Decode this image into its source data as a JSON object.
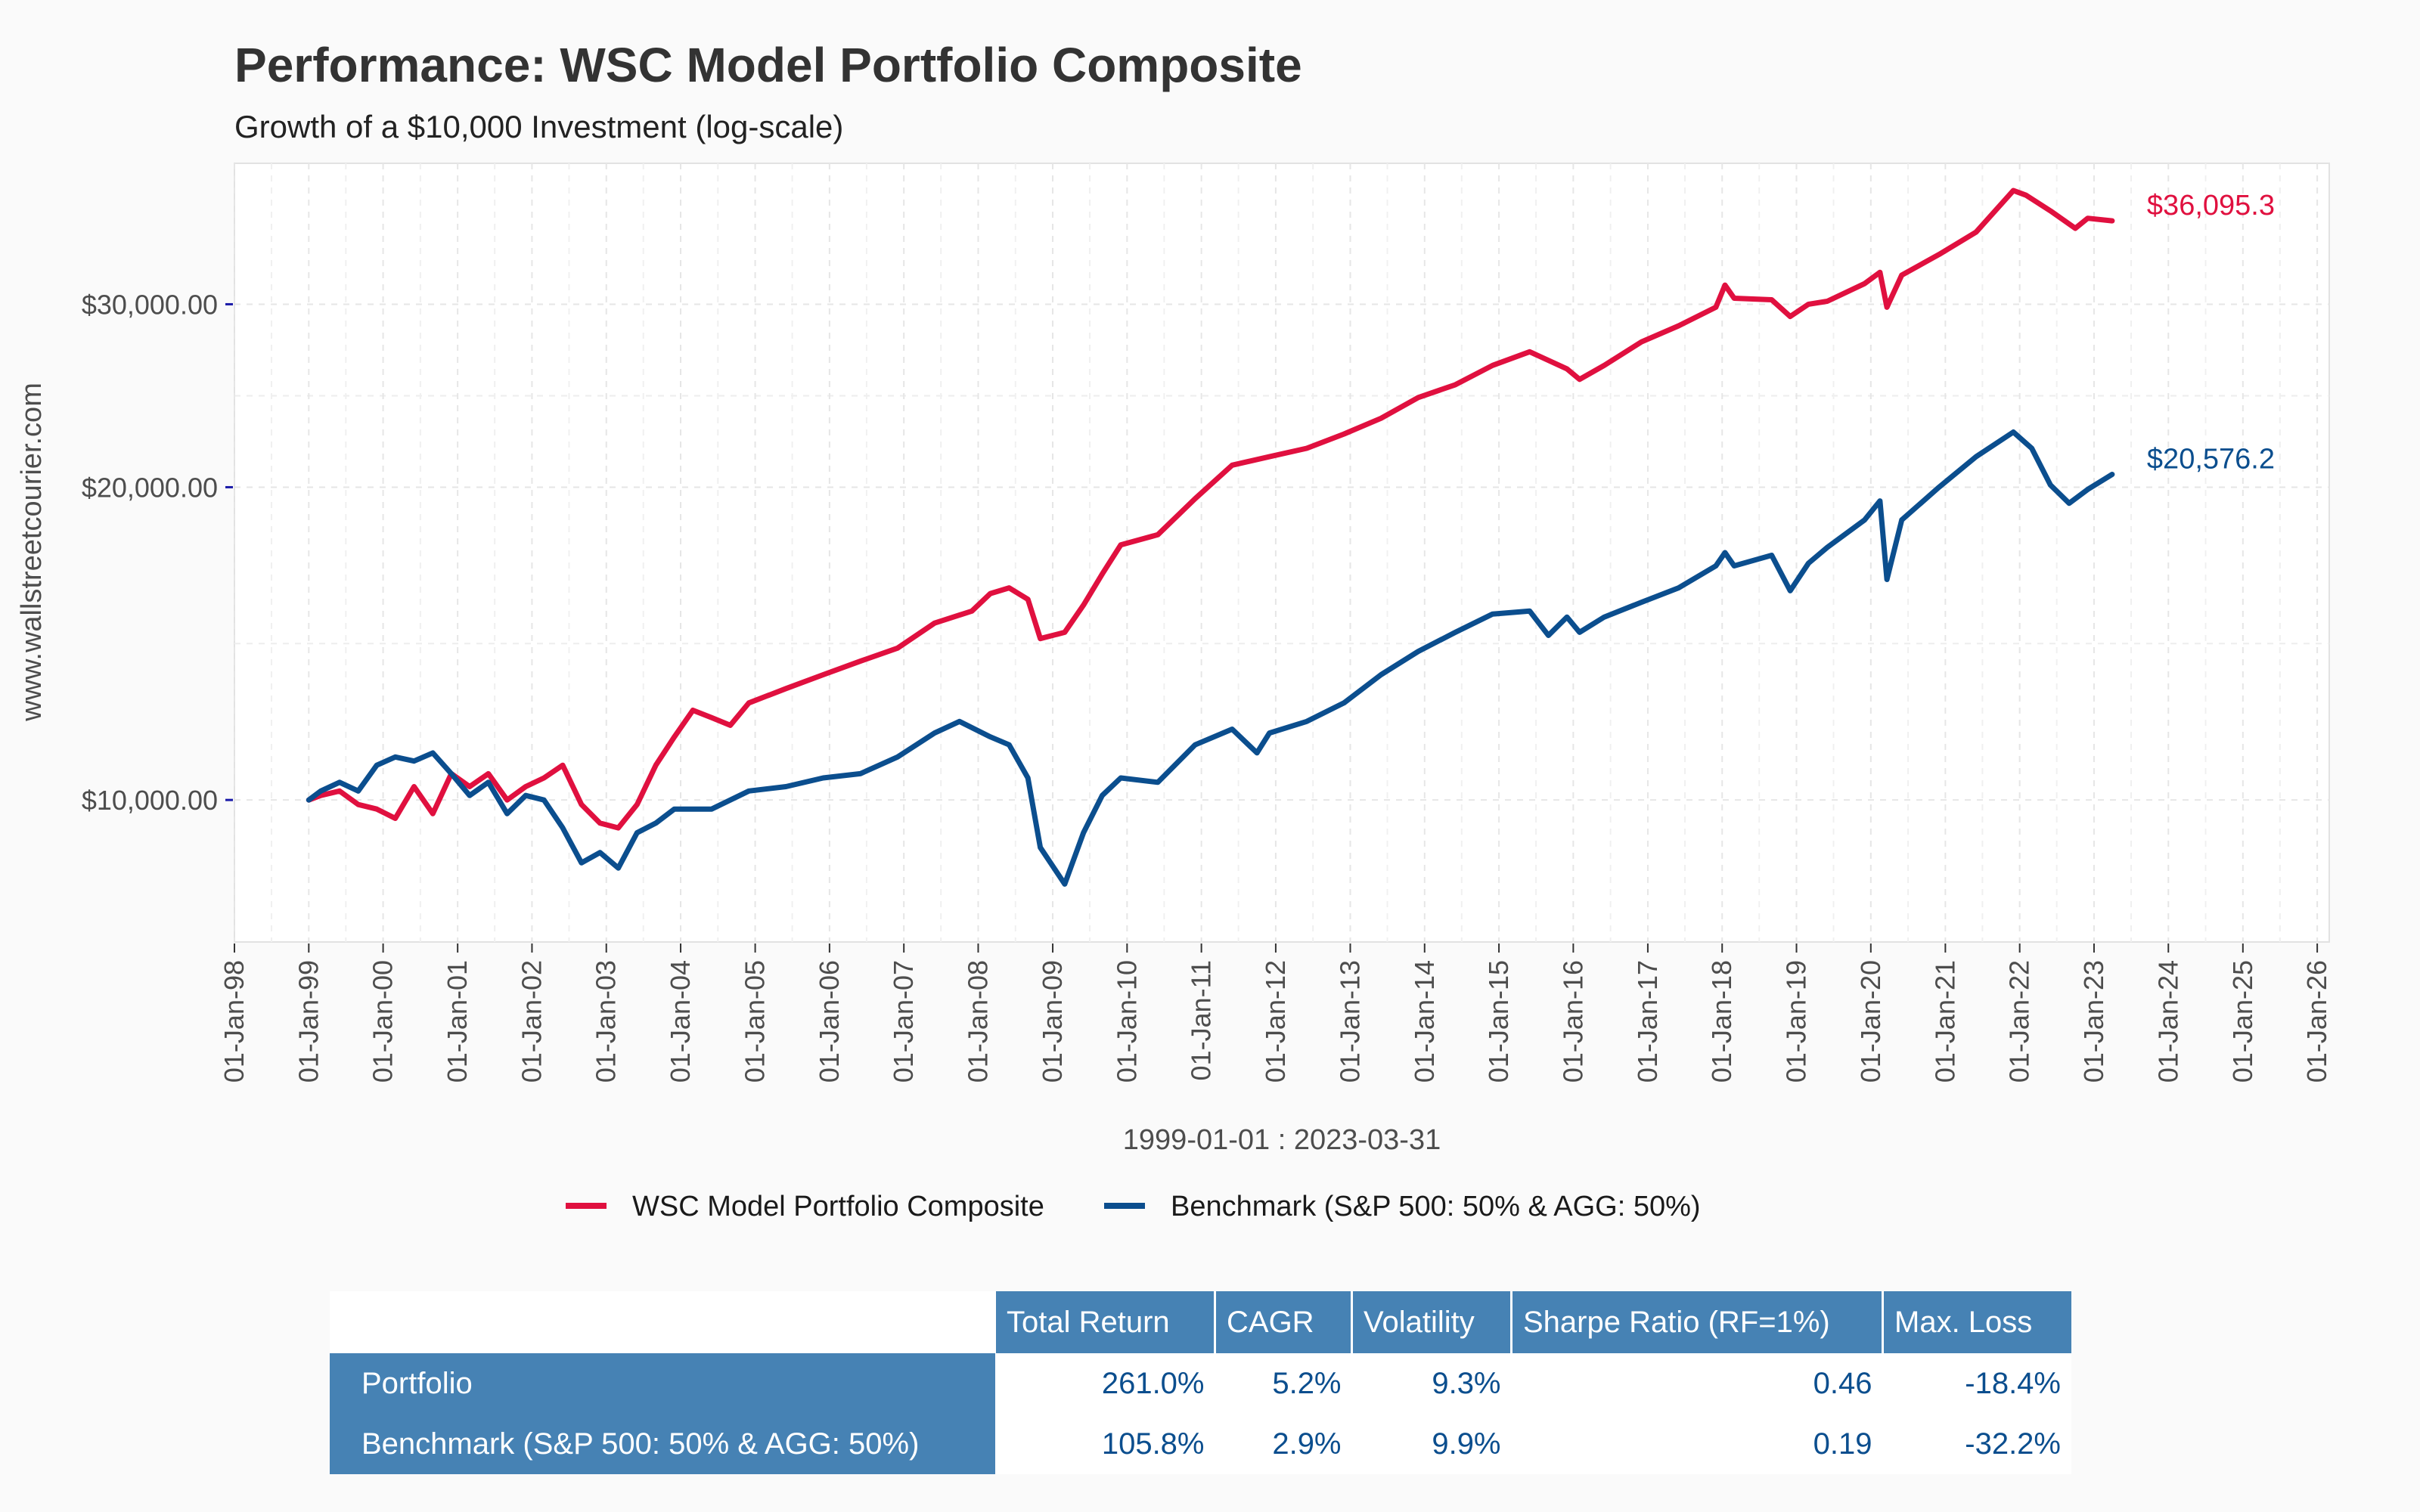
{
  "chart_data": {
    "type": "line",
    "title": "Performance: WSC Model Portfolio Composite",
    "subtitle": "Growth of a $10,000 Investment (log-scale)",
    "ylabel": "www.wallstreetcourier.com",
    "xlabel": "1999-01-01 : 2023-03-31",
    "y_scale": "log",
    "ylim": [
      7300,
      41000
    ],
    "xlim": [
      "1998-01-01",
      "2026-03-01"
    ],
    "y_ticks": [
      10000,
      20000,
      30000
    ],
    "y_tick_labels": [
      "$10,000.00",
      "$20,000.00",
      "$30,000.00"
    ],
    "x_tick_labels": [
      "01-Jan-98",
      "01-Jan-99",
      "01-Jan-00",
      "01-Jan-01",
      "01-Jan-02",
      "01-Jan-03",
      "01-Jan-04",
      "01-Jan-05",
      "01-Jan-06",
      "01-Jan-07",
      "01-Jan-08",
      "01-Jan-09",
      "01-Jan-10",
      "01-Jan-11",
      "01-Jan-12",
      "01-Jan-13",
      "01-Jan-14",
      "01-Jan-15",
      "01-Jan-16",
      "01-Jan-17",
      "01-Jan-18",
      "01-Jan-19",
      "01-Jan-20",
      "01-Jan-21",
      "01-Jan-22",
      "01-Jan-23",
      "01-Jan-24",
      "01-Jan-25",
      "01-Jan-26"
    ],
    "grid": true,
    "legend_position": "bottom",
    "series": [
      {
        "name": "WSC Model Portfolio Composite",
        "color": "#e0103f",
        "end_label": "$36,095.3",
        "points": [
          [
            "1999-01-01",
            10000
          ],
          [
            "1999-03-01",
            10100
          ],
          [
            "1999-06-01",
            10200
          ],
          [
            "1999-09-01",
            9900
          ],
          [
            "1999-12-01",
            9800
          ],
          [
            "2000-03-01",
            9600
          ],
          [
            "2000-06-01",
            10300
          ],
          [
            "2000-09-01",
            9700
          ],
          [
            "2000-12-01",
            10600
          ],
          [
            "2001-03-01",
            10300
          ],
          [
            "2001-06-01",
            10600
          ],
          [
            "2001-09-01",
            10000
          ],
          [
            "2001-12-01",
            10300
          ],
          [
            "2002-03-01",
            10500
          ],
          [
            "2002-06-01",
            10800
          ],
          [
            "2002-09-01",
            9900
          ],
          [
            "2002-12-01",
            9500
          ],
          [
            "2003-03-01",
            9400
          ],
          [
            "2003-06-01",
            9900
          ],
          [
            "2003-09-01",
            10800
          ],
          [
            "2003-12-01",
            11500
          ],
          [
            "2004-03-01",
            12200
          ],
          [
            "2004-06-01",
            12000
          ],
          [
            "2004-09-01",
            11800
          ],
          [
            "2004-12-01",
            12400
          ],
          [
            "2005-06-01",
            12800
          ],
          [
            "2005-12-01",
            13200
          ],
          [
            "2006-06-01",
            13600
          ],
          [
            "2006-12-01",
            14000
          ],
          [
            "2007-06-01",
            14800
          ],
          [
            "2007-12-01",
            15200
          ],
          [
            "2008-03-01",
            15800
          ],
          [
            "2008-06-01",
            16000
          ],
          [
            "2008-09-01",
            15600
          ],
          [
            "2008-11-01",
            14300
          ],
          [
            "2009-03-01",
            14500
          ],
          [
            "2009-06-01",
            15400
          ],
          [
            "2009-09-01",
            16500
          ],
          [
            "2009-12-01",
            17600
          ],
          [
            "2010-06-01",
            18000
          ],
          [
            "2010-12-01",
            19500
          ],
          [
            "2011-06-01",
            21000
          ],
          [
            "2011-12-01",
            21400
          ],
          [
            "2012-06-01",
            21800
          ],
          [
            "2012-12-01",
            22500
          ],
          [
            "2013-06-01",
            23300
          ],
          [
            "2013-12-01",
            24400
          ],
          [
            "2014-06-01",
            25100
          ],
          [
            "2014-12-01",
            26200
          ],
          [
            "2015-06-01",
            27000
          ],
          [
            "2015-12-01",
            26000
          ],
          [
            "2016-02-01",
            25400
          ],
          [
            "2016-06-01",
            26200
          ],
          [
            "2016-12-01",
            27600
          ],
          [
            "2017-06-01",
            28600
          ],
          [
            "2017-12-01",
            29800
          ],
          [
            "2018-01-15",
            31300
          ],
          [
            "2018-03-01",
            30400
          ],
          [
            "2018-09-01",
            30300
          ],
          [
            "2018-12-01",
            29200
          ],
          [
            "2019-03-01",
            30000
          ],
          [
            "2019-06-01",
            30200
          ],
          [
            "2019-12-01",
            31400
          ],
          [
            "2020-02-15",
            32200
          ],
          [
            "2020-03-20",
            29800
          ],
          [
            "2020-06-01",
            32000
          ],
          [
            "2020-12-01",
            33500
          ],
          [
            "2021-06-01",
            35200
          ],
          [
            "2021-12-01",
            38600
          ],
          [
            "2022-02-01",
            38200
          ],
          [
            "2022-06-01",
            36900
          ],
          [
            "2022-10-01",
            35500
          ],
          [
            "2022-12-01",
            36300
          ],
          [
            "2023-03-31",
            36095
          ]
        ]
      },
      {
        "name": "Benchmark (S&P 500: 50% & AGG: 50%)",
        "color": "#0b4e8e",
        "end_label": "$20,576.2",
        "points": [
          [
            "1999-01-01",
            10000
          ],
          [
            "1999-03-01",
            10200
          ],
          [
            "1999-06-01",
            10400
          ],
          [
            "1999-09-01",
            10200
          ],
          [
            "1999-12-01",
            10800
          ],
          [
            "2000-03-01",
            11000
          ],
          [
            "2000-06-01",
            10900
          ],
          [
            "2000-09-01",
            11100
          ],
          [
            "2000-12-01",
            10600
          ],
          [
            "2001-03-01",
            10100
          ],
          [
            "2001-06-01",
            10400
          ],
          [
            "2001-09-01",
            9700
          ],
          [
            "2001-12-01",
            10100
          ],
          [
            "2002-03-01",
            10000
          ],
          [
            "2002-06-01",
            9400
          ],
          [
            "2002-09-01",
            8700
          ],
          [
            "2002-12-01",
            8900
          ],
          [
            "2003-03-01",
            8600
          ],
          [
            "2003-06-01",
            9300
          ],
          [
            "2003-09-01",
            9500
          ],
          [
            "2003-12-01",
            9800
          ],
          [
            "2004-06-01",
            9800
          ],
          [
            "2004-12-01",
            10200
          ],
          [
            "2005-06-01",
            10300
          ],
          [
            "2005-12-01",
            10500
          ],
          [
            "2006-06-01",
            10600
          ],
          [
            "2006-12-01",
            11000
          ],
          [
            "2007-06-01",
            11600
          ],
          [
            "2007-10-01",
            11900
          ],
          [
            "2008-03-01",
            11500
          ],
          [
            "2008-06-01",
            11300
          ],
          [
            "2008-09-01",
            10500
          ],
          [
            "2008-11-01",
            9000
          ],
          [
            "2009-03-01",
            8300
          ],
          [
            "2009-06-01",
            9300
          ],
          [
            "2009-09-01",
            10100
          ],
          [
            "2009-12-01",
            10500
          ],
          [
            "2010-06-01",
            10400
          ],
          [
            "2010-12-01",
            11300
          ],
          [
            "2011-06-01",
            11700
          ],
          [
            "2011-10-01",
            11100
          ],
          [
            "2011-12-01",
            11600
          ],
          [
            "2012-06-01",
            11900
          ],
          [
            "2012-12-01",
            12400
          ],
          [
            "2013-06-01",
            13200
          ],
          [
            "2013-12-01",
            13900
          ],
          [
            "2014-06-01",
            14500
          ],
          [
            "2014-12-01",
            15100
          ],
          [
            "2015-06-01",
            15200
          ],
          [
            "2015-09-01",
            14400
          ],
          [
            "2015-12-01",
            15000
          ],
          [
            "2016-02-01",
            14500
          ],
          [
            "2016-06-01",
            15000
          ],
          [
            "2016-12-01",
            15500
          ],
          [
            "2017-06-01",
            16000
          ],
          [
            "2017-12-01",
            16800
          ],
          [
            "2018-01-15",
            17300
          ],
          [
            "2018-03-01",
            16800
          ],
          [
            "2018-09-01",
            17200
          ],
          [
            "2018-12-01",
            15900
          ],
          [
            "2019-03-01",
            16900
          ],
          [
            "2019-06-01",
            17500
          ],
          [
            "2019-12-01",
            18600
          ],
          [
            "2020-02-15",
            19400
          ],
          [
            "2020-03-20",
            16300
          ],
          [
            "2020-06-01",
            18600
          ],
          [
            "2020-12-01",
            20000
          ],
          [
            "2021-06-01",
            21400
          ],
          [
            "2021-12-01",
            22600
          ],
          [
            "2022-03-01",
            21800
          ],
          [
            "2022-06-01",
            20100
          ],
          [
            "2022-09-01",
            19300
          ],
          [
            "2022-12-01",
            19900
          ],
          [
            "2023-03-31",
            20576
          ]
        ]
      }
    ]
  },
  "table": {
    "headers": [
      "Total Return",
      "CAGR",
      "Volatility",
      "Sharpe Ratio (RF=1%)",
      "Max. Loss"
    ],
    "rows": [
      {
        "label": "Portfolio",
        "values": [
          "261.0%",
          "5.2%",
          "9.3%",
          "0.46",
          "-18.4%"
        ]
      },
      {
        "label": "Benchmark (S&P 500: 50% & AGG: 50%)",
        "values": [
          "105.8%",
          "2.9%",
          "9.9%",
          "0.19",
          "-32.2%"
        ]
      }
    ]
  }
}
